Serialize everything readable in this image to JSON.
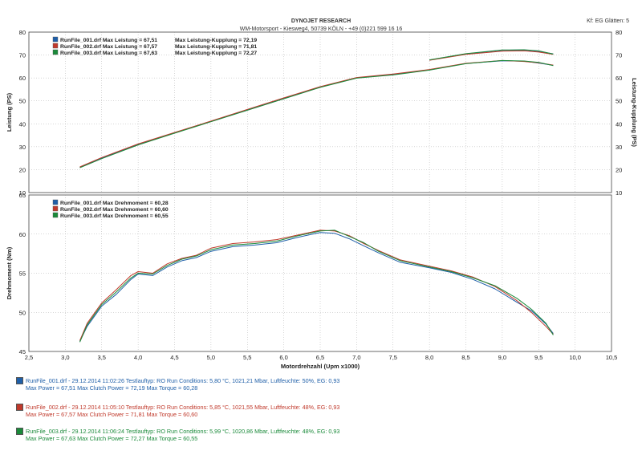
{
  "header": {
    "title": "DYNOJET RESEARCH",
    "subtitle": "WM-Motorsport - Kiesweg4, 50739 KÖLN - +49 (0)221 599 16 16",
    "corner": "Kf: EG  Glätten: 5"
  },
  "runs": [
    {
      "line1": "RunFile_001.drf - 29.12.2014 11:02:26  Testlauftyp: RO  Run Conditions: 5,80 °C, 1021,21 Mbar,  Luftfeuchte: 50%,  EG: 0,93",
      "line2": "Max Power = 67,51  Max Clutch Power = 72,19  Max Torque = 60,28",
      "color": "#1f5fa8"
    },
    {
      "line1": "RunFile_002.drf - 29.12.2014 11:05:10  Testlauftyp: RO  Run Conditions: 5,85 °C, 1021,55 Mbar,  Luftfeuchte: 48%,  EG: 0,93",
      "line2": "Max Power = 67,57  Max Clutch Power = 71,81  Max Torque = 60,60",
      "color": "#c0392b"
    },
    {
      "line1": "RunFile_003.drf - 29.12.2014 11:06:24  Testlauftyp: RO  Run Conditions: 5,99 °C, 1020,86 Mbar,  Luftfeuchte: 48%,  EG: 0,93",
      "line2": "Max Power = 67,63  Max Clutch Power = 72,27  Max Torque = 60,55",
      "color": "#1a8a3a"
    }
  ],
  "chart_data": [
    {
      "type": "line",
      "ylabel": "Leistung (PS)",
      "y2label": "Leistung-Kupplung (PS)",
      "ylim": [
        10,
        80
      ],
      "y2lim": [
        10,
        80
      ],
      "xlim": [
        2.5,
        10.5
      ],
      "yticks": [
        "10",
        "20",
        "30",
        "40",
        "50",
        "60",
        "70",
        "80"
      ],
      "legend": [
        "RunFile_001.drf Max Leistung = 67,51",
        "RunFile_002.drf Max Leistung = 67,57",
        "RunFile_003.drf Max Leistung = 67,63"
      ],
      "legend2": [
        "Max Leistung-Kupplung = 72,19",
        "Max Leistung-Kupplung = 71,81",
        "Max Leistung-Kupplung = 72,27"
      ],
      "series": [
        {
          "name": "RunFile_001.drf",
          "color": "#1f5fa8",
          "x": [
            3.2,
            3.5,
            4.0,
            4.5,
            5.0,
            5.5,
            6.0,
            6.5,
            7.0,
            7.5,
            8.0,
            8.5,
            9.0,
            9.3,
            9.5,
            9.7
          ],
          "y": [
            21,
            25,
            31,
            36,
            41,
            46,
            51,
            56,
            60,
            61.5,
            63.5,
            66.3,
            67.5,
            67.3,
            66.5,
            65.5
          ]
        },
        {
          "name": "RunFile_002.drf",
          "color": "#c0392b",
          "x": [
            3.2,
            3.5,
            4.0,
            4.5,
            5.0,
            5.5,
            6.0,
            6.5,
            7.0,
            7.5,
            8.0,
            8.5,
            9.0,
            9.3,
            9.5,
            9.7
          ],
          "y": [
            21.2,
            25.3,
            31.2,
            36.2,
            41.2,
            46.3,
            51.3,
            56.2,
            60.2,
            61.7,
            63.7,
            66.4,
            67.6,
            67.2,
            66.6,
            65.6
          ]
        },
        {
          "name": "RunFile_003.drf",
          "color": "#1a8a3a",
          "x": [
            3.2,
            3.5,
            4.0,
            4.5,
            5.0,
            5.5,
            6.0,
            6.5,
            7.0,
            7.5,
            8.0,
            8.5,
            9.0,
            9.3,
            9.5,
            9.7
          ],
          "y": [
            20.8,
            24.8,
            30.8,
            35.9,
            40.9,
            45.9,
            50.9,
            55.9,
            59.9,
            61.3,
            63.4,
            66.2,
            67.6,
            67.4,
            66.8,
            65.4
          ]
        }
      ],
      "clutch_series": [
        {
          "color": "#1f5fa8",
          "x": [
            8.0,
            8.5,
            9.0,
            9.3,
            9.5,
            9.7
          ],
          "y": [
            67.8,
            70.5,
            72.1,
            72.2,
            71.6,
            70.5
          ]
        },
        {
          "color": "#c0392b",
          "x": [
            8.0,
            8.5,
            9.0,
            9.3,
            9.5,
            9.7
          ],
          "y": [
            67.7,
            70.3,
            71.7,
            71.8,
            71.3,
            70.3
          ]
        },
        {
          "color": "#1a8a3a",
          "x": [
            8.0,
            8.5,
            9.0,
            9.3,
            9.5,
            9.7
          ],
          "y": [
            67.9,
            70.6,
            72.2,
            72.3,
            71.8,
            70.4
          ]
        }
      ]
    },
    {
      "type": "line",
      "ylabel": "Drehmoment (Nm)",
      "xlabel": "Motordrehzahl (Upm x1000)",
      "ylim": [
        45,
        65
      ],
      "xlim": [
        2.5,
        10.5
      ],
      "yticks": [
        "45",
        "50",
        "55",
        "60",
        "65"
      ],
      "xticks": [
        "2,5",
        "3,0",
        "3,5",
        "4,0",
        "4,5",
        "5,0",
        "5,5",
        "6,0",
        "6,5",
        "7,0",
        "7,5",
        "8,0",
        "8,5",
        "9,0",
        "9,5",
        "10,0",
        "10,5"
      ],
      "legend": [
        "RunFile_001.drf Max Drehmoment = 60,28",
        "RunFile_002.drf Max Drehmoment = 60,60",
        "RunFile_003.drf Max Drehmoment = 60,55"
      ],
      "series": [
        {
          "name": "RunFile_001.drf",
          "color": "#1f5fa8",
          "x": [
            3.2,
            3.3,
            3.5,
            3.7,
            3.9,
            4.0,
            4.2,
            4.4,
            4.6,
            4.8,
            5.0,
            5.3,
            5.6,
            5.9,
            6.2,
            6.5,
            6.7,
            6.9,
            7.1,
            7.3,
            7.6,
            8.0,
            8.3,
            8.6,
            8.9,
            9.2,
            9.4,
            9.6,
            9.7
          ],
          "y": [
            46.3,
            48.2,
            50.8,
            52.3,
            54.2,
            54.9,
            54.7,
            55.8,
            56.6,
            57.0,
            57.8,
            58.4,
            58.6,
            58.9,
            59.6,
            60.2,
            60.1,
            59.4,
            58.5,
            57.6,
            56.4,
            55.7,
            55.1,
            54.2,
            53.0,
            51.3,
            50.2,
            48.5,
            47.3
          ]
        },
        {
          "name": "RunFile_002.drf",
          "color": "#c0392b",
          "x": [
            3.2,
            3.3,
            3.5,
            3.7,
            3.9,
            4.0,
            4.2,
            4.4,
            4.6,
            4.8,
            5.0,
            5.3,
            5.6,
            5.9,
            6.2,
            6.5,
            6.7,
            6.9,
            7.1,
            7.3,
            7.6,
            8.0,
            8.3,
            8.6,
            8.9,
            9.2,
            9.4,
            9.6,
            9.7
          ],
          "y": [
            46.4,
            48.6,
            51.2,
            52.9,
            54.7,
            55.2,
            55.0,
            56.2,
            56.9,
            57.3,
            58.2,
            58.8,
            59.0,
            59.3,
            59.9,
            60.5,
            60.4,
            59.8,
            58.8,
            57.9,
            56.7,
            55.9,
            55.3,
            54.5,
            53.3,
            51.5,
            50.0,
            48.2,
            47.2
          ]
        },
        {
          "name": "RunFile_003.drf",
          "color": "#1a8a3a",
          "x": [
            3.2,
            3.3,
            3.5,
            3.7,
            3.9,
            4.0,
            4.2,
            4.4,
            4.6,
            4.8,
            5.0,
            5.3,
            5.6,
            5.9,
            6.2,
            6.5,
            6.7,
            6.9,
            7.1,
            7.3,
            7.6,
            8.0,
            8.3,
            8.6,
            8.9,
            9.2,
            9.4,
            9.6,
            9.7
          ],
          "y": [
            46.2,
            48.4,
            51.0,
            52.6,
            54.4,
            55.0,
            54.9,
            56.0,
            56.8,
            57.2,
            58.0,
            58.6,
            58.8,
            59.1,
            59.8,
            60.4,
            60.5,
            59.7,
            58.9,
            57.8,
            56.6,
            55.8,
            55.2,
            54.4,
            53.4,
            51.8,
            50.4,
            48.6,
            47.1
          ]
        }
      ]
    }
  ]
}
